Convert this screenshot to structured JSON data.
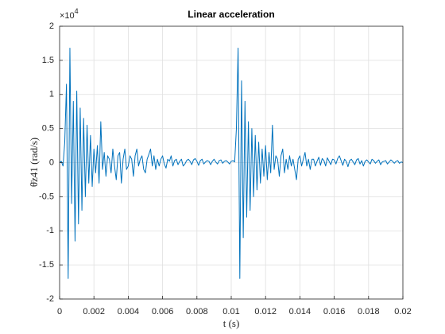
{
  "chart_data": {
    "type": "line",
    "title": "Linear acceleration",
    "xlabel": "t (s)",
    "ylabel": "θ̈z41 (rad/s)",
    "y_multiplier": {
      "base": "×10",
      "exponent": "4"
    },
    "xlim": [
      0,
      0.02
    ],
    "xticks": [
      0,
      0.002,
      0.004,
      0.006,
      0.008,
      0.01,
      0.012,
      0.014,
      0.016,
      0.018,
      0.02
    ],
    "ylim": [
      -2,
      2
    ],
    "yticks": [
      -2,
      -1.5,
      -1,
      -0.5,
      0,
      0.5,
      1,
      1.5,
      2
    ],
    "grid": true,
    "x": [
      0,
      0.0001,
      0.0002,
      0.0003,
      0.0004,
      0.0005,
      0.0006,
      0.0007,
      0.0008,
      0.0009,
      0.001,
      0.0011,
      0.0012,
      0.0013,
      0.0014,
      0.0015,
      0.0016,
      0.0017,
      0.0018,
      0.0019,
      0.002,
      0.0021,
      0.0022,
      0.0023,
      0.0024,
      0.0025,
      0.0026,
      0.0027,
      0.0028,
      0.0029,
      0.003,
      0.0031,
      0.0032,
      0.0033,
      0.0034,
      0.0035,
      0.0036,
      0.0037,
      0.0038,
      0.0039,
      0.004,
      0.0041,
      0.0042,
      0.0043,
      0.0044,
      0.0045,
      0.0046,
      0.0047,
      0.0048,
      0.0049,
      0.005,
      0.0051,
      0.0052,
      0.0053,
      0.0054,
      0.0055,
      0.0056,
      0.0057,
      0.0058,
      0.0059,
      0.006,
      0.0061,
      0.0062,
      0.0063,
      0.0064,
      0.0065,
      0.0066,
      0.0067,
      0.0068,
      0.0069,
      0.007,
      0.0071,
      0.0072,
      0.0073,
      0.0074,
      0.0075,
      0.0076,
      0.0077,
      0.0078,
      0.0079,
      0.008,
      0.0081,
      0.0082,
      0.0083,
      0.0084,
      0.0085,
      0.0086,
      0.0087,
      0.0088,
      0.0089,
      0.009,
      0.0091,
      0.0092,
      0.0093,
      0.0094,
      0.0095,
      0.0096,
      0.0097,
      0.0098,
      0.0099,
      0.01,
      0.0101,
      0.0102,
      0.0103,
      0.0104,
      0.0105,
      0.0106,
      0.0107,
      0.0108,
      0.0109,
      0.011,
      0.0111,
      0.0112,
      0.0113,
      0.0114,
      0.0115,
      0.0116,
      0.0117,
      0.0118,
      0.0119,
      0.012,
      0.0121,
      0.0122,
      0.0123,
      0.0124,
      0.0125,
      0.0126,
      0.0127,
      0.0128,
      0.0129,
      0.013,
      0.0131,
      0.0132,
      0.0133,
      0.0134,
      0.0135,
      0.0136,
      0.0137,
      0.0138,
      0.0139,
      0.014,
      0.0141,
      0.0142,
      0.0143,
      0.0144,
      0.0145,
      0.0146,
      0.0147,
      0.0148,
      0.0149,
      0.015,
      0.0151,
      0.0152,
      0.0153,
      0.0154,
      0.0155,
      0.0156,
      0.0157,
      0.0158,
      0.0159,
      0.016,
      0.0161,
      0.0162,
      0.0163,
      0.0164,
      0.0165,
      0.0166,
      0.0167,
      0.0168,
      0.0169,
      0.017,
      0.0171,
      0.0172,
      0.0173,
      0.0174,
      0.0175,
      0.0176,
      0.0177,
      0.0178,
      0.0179,
      0.018,
      0.0181,
      0.0182,
      0.0183,
      0.0184,
      0.0185,
      0.0186,
      0.0187,
      0.0188,
      0.0189,
      0.019,
      0.0191,
      0.0192,
      0.0193,
      0.0194,
      0.0195,
      0.0196,
      0.0197,
      0.0198,
      0.0199,
      0.02
    ],
    "series": [
      {
        "color": "#0072bd",
        "values": [
          0,
          0.02,
          -0.05,
          0.3,
          1.15,
          -1.7,
          1.68,
          -0.6,
          0.9,
          -1.15,
          1.05,
          -0.9,
          0.8,
          -0.7,
          0.65,
          -0.5,
          0.55,
          -0.3,
          0.4,
          -0.35,
          0.2,
          -0.15,
          0.25,
          -0.3,
          0.6,
          -0.1,
          0.15,
          -0.2,
          0.1,
          0.05,
          -0.15,
          0.2,
          -0.05,
          -0.25,
          0.1,
          0.15,
          -0.3,
          0.05,
          0.2,
          -0.1,
          -0.05,
          0.1,
          0.05,
          -0.2,
          0.1,
          0.2,
          -0.05,
          0.05,
          0.1,
          -0.1,
          -0.15,
          0.05,
          0.12,
          0.2,
          -0.05,
          0.1,
          -0.1,
          0.05,
          -0.05,
          0.05,
          0.1,
          -0.02,
          -0.08,
          0.05,
          0.02,
          0.1,
          -0.05,
          0.03,
          0.05,
          -0.03,
          0.02,
          0.05,
          -0.05,
          -0.02,
          0.03,
          0.05,
          0.02,
          -0.03,
          0.04,
          0.06,
          0.02,
          -0.04,
          0.03,
          0.05,
          -0.02,
          0.01,
          0.03,
          0.02,
          -0.03,
          0.02,
          0.05,
          0.01,
          -0.02,
          0.03,
          0.04,
          -0.01,
          0.02,
          0.03,
          0.01,
          -0.02,
          0.02,
          0.03,
          0.01,
          0.5,
          1.68,
          -1.7,
          1.2,
          -1.1,
          0.9,
          -0.8,
          0.6,
          -0.7,
          0.5,
          -0.5,
          0.4,
          -0.4,
          0.3,
          -0.3,
          0.2,
          -0.2,
          0.25,
          -0.25,
          0.15,
          -0.15,
          0.55,
          -0.1,
          0.1,
          0.05,
          -0.2,
          0.1,
          0.2,
          -0.15,
          0.05,
          -0.1,
          0.1,
          -0.05,
          0.05,
          -0.1,
          -0.25,
          0.05,
          0.1,
          -0.05,
          0.05,
          0.15,
          -0.05,
          0.05,
          -0.1,
          0.05,
          0.05,
          -0.05,
          0.02,
          0.08,
          -0.04,
          0.06,
          0.03,
          -0.05,
          0.07,
          0.02,
          -0.03,
          0.05,
          0.04,
          -0.02,
          0.06,
          0.1,
          0.03,
          -0.04,
          0.05,
          0.02,
          -0.06,
          0.03,
          0.05,
          0.01,
          -0.03,
          0.04,
          0.06,
          -0.02,
          0.03,
          -0.05,
          0.02,
          0.04,
          0.01,
          -0.02,
          0.05,
          0.03,
          -0.01,
          0.02,
          0.04,
          -0.03,
          0.01,
          0.02,
          0.03,
          -0.02,
          0.01,
          0.04,
          0.02,
          -0.01,
          0.02,
          0.03,
          -0.01,
          0.01,
          0
        ]
      }
    ]
  }
}
